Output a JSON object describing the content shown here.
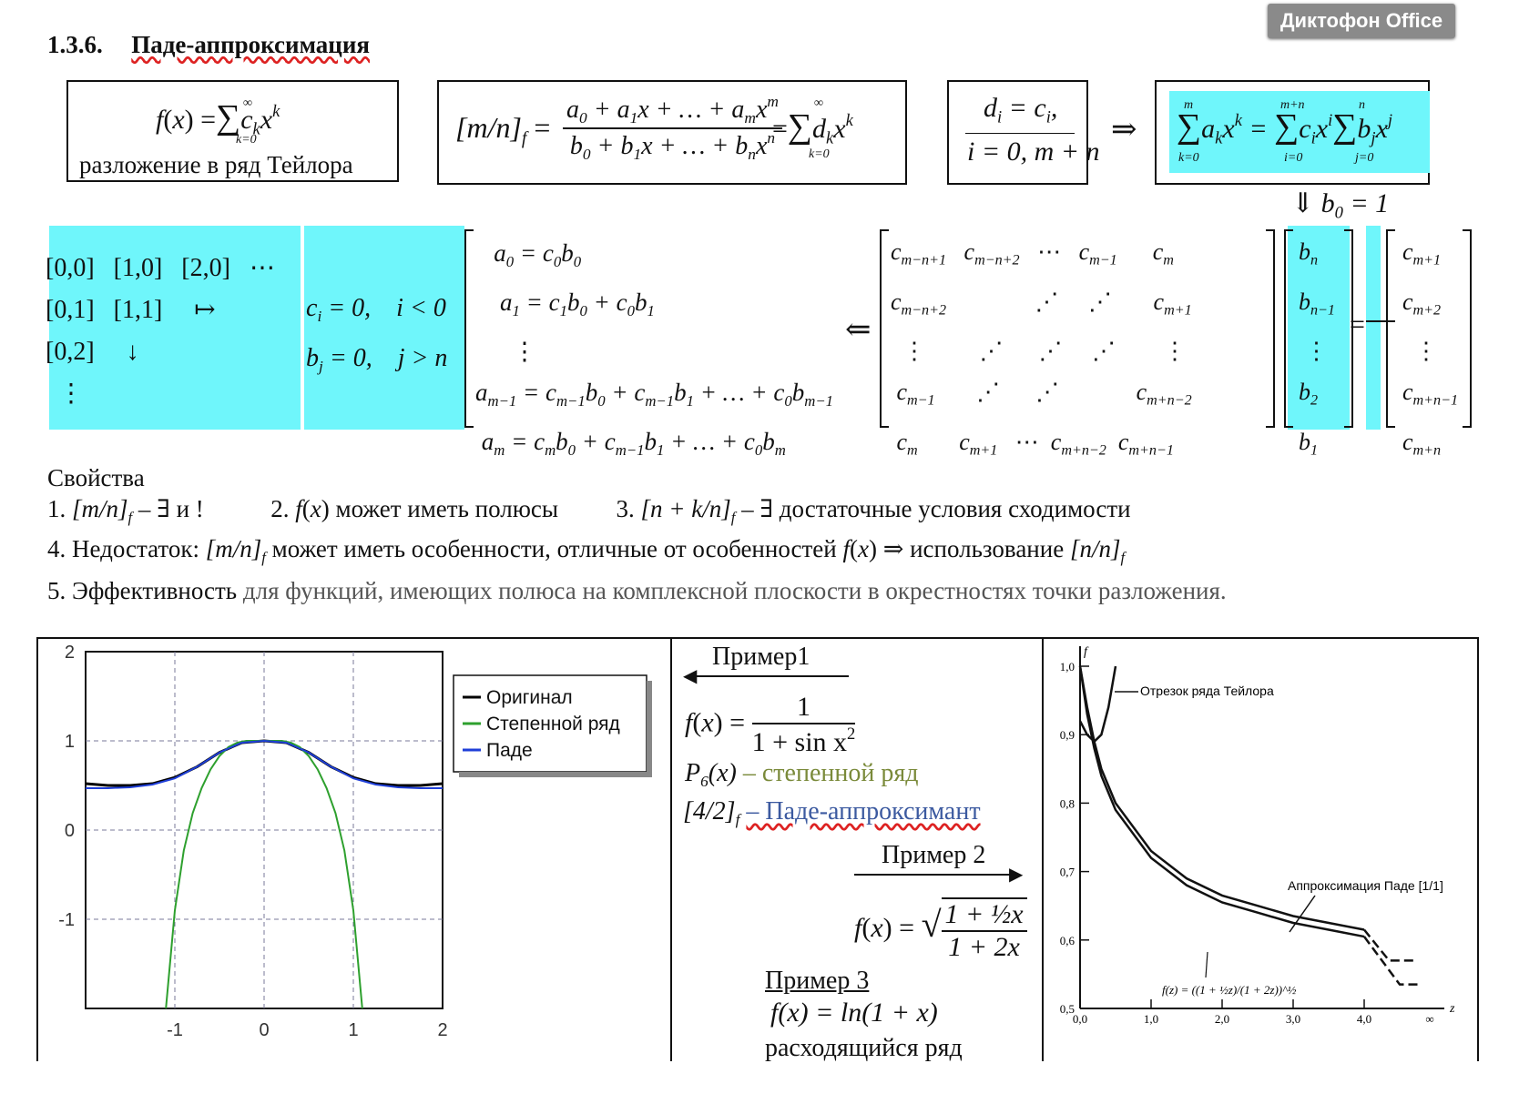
{
  "badge": "Диктофон Office",
  "section": {
    "number": "1.3.6.",
    "title": "Паде-аппроксимация"
  },
  "taylor_caption": "разложение в ряд Тейлора",
  "props": {
    "heading": "Свойства",
    "p1_num": "1.",
    "p1_text": "– ∃ и !",
    "p2": "2.",
    "p2_text": "может иметь полюсы",
    "p3": "3.",
    "p3_text": "– ∃ достаточные условия сходимости",
    "p4_a": "4. Недостаток:",
    "p4_b": "может иметь особенности, отличные от особенностей",
    "p4_c": "⇒ использование",
    "p5_a": "5. Эффективность",
    "p5_b": "для функций, имеющих полюса на комплексной плоскости в окрестностях точки разложения."
  },
  "chart_data": [
    {
      "type": "line",
      "xlim": [
        -2,
        2
      ],
      "ylim": [
        -2,
        2
      ],
      "xticks": [
        "-1",
        "0",
        "1",
        "2"
      ],
      "yticks": [
        "2",
        "1",
        "0",
        "-1"
      ],
      "grid": true,
      "legend_position": "top-right",
      "series": [
        {
          "name": "Оригинал",
          "color": "#000000",
          "x": [
            -2,
            -1.75,
            -1.5,
            -1.25,
            -1,
            -0.75,
            -0.5,
            -0.25,
            0,
            0.25,
            0.5,
            0.75,
            1,
            1.25,
            1.5,
            1.75,
            2
          ],
          "y": [
            0.52,
            0.5,
            0.5,
            0.52,
            0.59,
            0.71,
            0.87,
            0.98,
            1.0,
            0.98,
            0.87,
            0.71,
            0.59,
            0.52,
            0.5,
            0.5,
            0.52
          ]
        },
        {
          "name": "Степенной ряд",
          "color": "#2ea02e",
          "x": [
            -1.1,
            -1.0,
            -0.9,
            -0.8,
            -0.7,
            -0.6,
            -0.5,
            -0.4,
            -0.3,
            -0.2,
            -0.1,
            0,
            0.1,
            0.2,
            0.3,
            0.4,
            0.5,
            0.6,
            0.7,
            0.8,
            0.9,
            1.0,
            1.1
          ],
          "y": [
            -2.0,
            -0.9,
            -0.23,
            0.19,
            0.47,
            0.68,
            0.83,
            0.93,
            0.98,
            1.0,
            1.0,
            1.0,
            1.0,
            1.0,
            0.98,
            0.93,
            0.83,
            0.68,
            0.47,
            0.19,
            -0.23,
            -0.9,
            -2.0
          ]
        },
        {
          "name": "Паде",
          "color": "#1f3fd8",
          "x": [
            -2,
            -1.75,
            -1.5,
            -1.25,
            -1,
            -0.75,
            -0.5,
            -0.25,
            0,
            0.25,
            0.5,
            0.75,
            1,
            1.25,
            1.5,
            1.75,
            2
          ],
          "y": [
            0.47,
            0.47,
            0.48,
            0.51,
            0.58,
            0.71,
            0.87,
            0.98,
            1.0,
            0.98,
            0.87,
            0.71,
            0.58,
            0.51,
            0.48,
            0.47,
            0.47
          ]
        }
      ]
    },
    {
      "type": "line",
      "xlim": [
        0,
        5
      ],
      "ylim": [
        0.5,
        1.0
      ],
      "xticks": [
        "0,0",
        "1,0",
        "2,0",
        "3,0",
        "4,0"
      ],
      "yticks": [
        "1,0",
        "0,9",
        "0,8",
        "0,7",
        "0,6",
        "0,5"
      ],
      "xlabel": "z",
      "ylabel": "f",
      "annotations": [
        "Отрезок ряда Тейлора",
        "Аппроксимация Паде [1/1]",
        "f(z) = ((1 + ½z)/(1 + 2z))^½"
      ],
      "x_label_extra": "∞",
      "series": [
        {
          "x": [
            0,
            0.1,
            0.2,
            0.3,
            0.5,
            1.0,
            1.5,
            2.0,
            2.5,
            3.0,
            3.5,
            4.0
          ],
          "y": [
            1.0,
            0.93,
            0.88,
            0.84,
            0.79,
            0.72,
            0.68,
            0.655,
            0.64,
            0.625,
            0.615,
            0.605
          ]
        },
        {
          "x": [
            0,
            0.1,
            0.2,
            0.3,
            0.5,
            1.0,
            1.5,
            2.0,
            2.5,
            3.0,
            3.5,
            4.0
          ],
          "y": [
            1.0,
            0.94,
            0.89,
            0.85,
            0.8,
            0.73,
            0.69,
            0.665,
            0.65,
            0.635,
            0.625,
            0.615
          ]
        },
        {
          "x": [
            0,
            0.1,
            0.2,
            0.3,
            0.4,
            0.5
          ],
          "y": [
            0.92,
            0.9,
            0.89,
            0.9,
            0.94,
            1.0
          ]
        }
      ]
    }
  ],
  "legend": [
    "Оригинал",
    "Степенной ряд",
    "Паде"
  ],
  "examples": {
    "ex1": "Пример1",
    "ex1_num": "1",
    "ex1_den": "1 + sin x",
    "p6": "– степенной ряд",
    "pade": "– Паде-аппроксимант",
    "ex2": "Пример 2",
    "ex3": "Пример 3",
    "ex3_func": "f(x) = ln(1 + x)",
    "ex3_note": "расходящийся ряд"
  }
}
